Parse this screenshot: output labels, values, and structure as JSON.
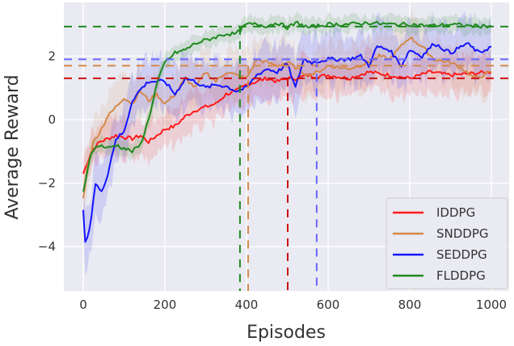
{
  "chart_data": {
    "type": "line",
    "title": "",
    "xlabel": "Episodes",
    "ylabel": "Average Reward",
    "xlim": [
      -45,
      1045
    ],
    "ylim": [
      -5.5,
      3.7
    ],
    "xticks": [
      0,
      200,
      400,
      600,
      800,
      1000
    ],
    "yticks": [
      -4,
      -2,
      0,
      2
    ],
    "xtick_labels": [
      "0",
      "200",
      "400",
      "600",
      "800",
      "1000"
    ],
    "ytick_labels": [
      "−4",
      "−2",
      "0",
      "2"
    ],
    "grid": true,
    "legend_position": "lower right",
    "series": [
      {
        "name": "IDDPG",
        "color": "#ff1a1a",
        "x": [
          0,
          20,
          40,
          60,
          80,
          100,
          120,
          140,
          160,
          180,
          200,
          225,
          250,
          275,
          300,
          325,
          350,
          375,
          400,
          425,
          450,
          475,
          500,
          525,
          550,
          575,
          600,
          650,
          700,
          750,
          800,
          850,
          900,
          950,
          1000
        ],
        "values": [
          -1.7,
          -1.0,
          -0.7,
          -0.6,
          -0.5,
          -0.55,
          -0.6,
          -0.5,
          -0.7,
          -0.5,
          -0.3,
          -0.2,
          0.1,
          0.3,
          0.4,
          0.5,
          0.8,
          0.9,
          1.1,
          1.2,
          1.3,
          1.2,
          1.3,
          1.3,
          1.4,
          1.35,
          1.4,
          1.3,
          1.5,
          1.4,
          1.3,
          1.5,
          1.4,
          1.45,
          1.5
        ],
        "band": 0.6,
        "converged_value": 1.3,
        "converged_episode": 501
      },
      {
        "name": "SNDDPG",
        "color": "#d4894a",
        "x": [
          0,
          10,
          25,
          40,
          60,
          80,
          100,
          120,
          140,
          160,
          180,
          200,
          225,
          250,
          275,
          300,
          325,
          350,
          375,
          400,
          425,
          450,
          475,
          500,
          525,
          550,
          575,
          600,
          650,
          700,
          725,
          750,
          800,
          830,
          860,
          900,
          930,
          960,
          1000
        ],
        "values": [
          -2.5,
          -1.5,
          -0.7,
          -0.4,
          0.1,
          0.4,
          0.7,
          0.5,
          0.9,
          0.6,
          0.8,
          0.5,
          0.8,
          1.3,
          1.0,
          1.5,
          1.2,
          1.5,
          1.4,
          1.3,
          1.9,
          1.8,
          1.7,
          1.8,
          1.6,
          1.4,
          1.5,
          1.7,
          1.6,
          1.8,
          2.0,
          1.9,
          2.6,
          2.3,
          1.9,
          1.8,
          1.6,
          1.3,
          1.5
        ],
        "band": 0.7,
        "converged_value": 1.7,
        "converged_episode": 404
      },
      {
        "name": "SEDDPG",
        "color": "#1414ff",
        "x": [
          0,
          5,
          15,
          30,
          45,
          60,
          80,
          100,
          120,
          140,
          160,
          200,
          225,
          250,
          275,
          300,
          325,
          350,
          375,
          400,
          425,
          450,
          475,
          500,
          520,
          540,
          560,
          600,
          620,
          650,
          680,
          700,
          720,
          750,
          780,
          800,
          830,
          860,
          900,
          940,
          970,
          1000
        ],
        "values": [
          -2.9,
          -3.9,
          -3.5,
          -2.0,
          -2.3,
          -1.7,
          -0.6,
          -0.4,
          0.6,
          0.95,
          1.2,
          1.2,
          0.8,
          1.3,
          1.2,
          1.0,
          1.1,
          1.05,
          0.9,
          1.0,
          1.4,
          1.6,
          1.5,
          1.75,
          1.0,
          1.9,
          1.8,
          1.9,
          1.9,
          1.9,
          2.0,
          1.7,
          2.3,
          2.2,
          1.7,
          2.2,
          2.0,
          2.4,
          2.1,
          2.4,
          2.1,
          2.3
        ],
        "band": 0.8,
        "converged_value": 1.9,
        "converged_episode": 572
      },
      {
        "name": "FLDDPG",
        "color": "#1f8a1f",
        "x": [
          0,
          10,
          20,
          40,
          60,
          80,
          100,
          120,
          140,
          160,
          180,
          200,
          225,
          250,
          275,
          300,
          325,
          350,
          375,
          400,
          425,
          450,
          475,
          500,
          525,
          550,
          575,
          600,
          650,
          700,
          750,
          800,
          850,
          900,
          950,
          1000
        ],
        "values": [
          -2.3,
          -1.6,
          -1.0,
          -0.8,
          -0.9,
          -0.8,
          -0.9,
          -1.0,
          -0.8,
          0.0,
          1.1,
          1.8,
          2.1,
          2.2,
          2.4,
          2.5,
          2.6,
          2.7,
          2.7,
          3.0,
          3.0,
          2.95,
          3.05,
          2.9,
          3.05,
          2.9,
          2.95,
          3.0,
          3.0,
          3.05,
          3.0,
          3.0,
          2.95,
          3.0,
          2.95,
          2.95
        ],
        "band": 0.25,
        "converged_value": 2.93,
        "converged_episode": 384
      }
    ]
  }
}
